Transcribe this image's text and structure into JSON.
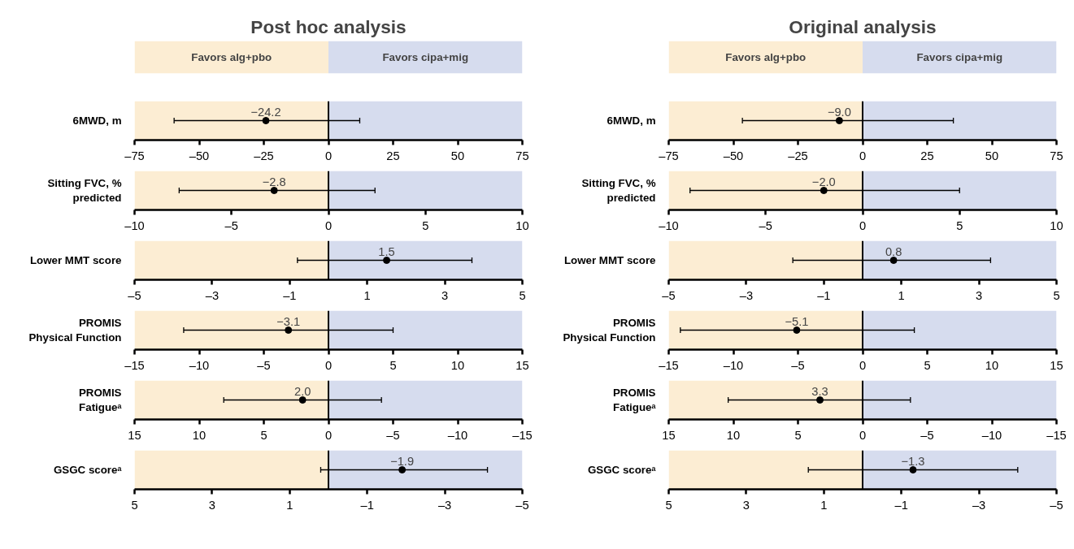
{
  "chart_data": [
    {
      "type": "scatter",
      "orientation": "horizontal",
      "title": "Post hoc analysis",
      "annotations": [
        "Favors alg+pbo",
        "Favors cipa+mig"
      ],
      "categories": [
        "6MWD, m"
      ],
      "values": [
        -24.2
      ],
      "errors": [
        [
          -59.7,
          12.1
        ]
      ],
      "value_labels": [
        "−24.2"
      ],
      "marker": "circle",
      "xlim": [
        -75,
        75
      ],
      "xticks": [
        {
          "value": -75,
          "label": "–75"
        },
        {
          "value": -50,
          "label": "–50"
        },
        {
          "value": -25,
          "label": "–25"
        },
        0,
        25,
        50,
        75
      ],
      "ref_lines": [
        {
          "axis": "x",
          "value": 0
        }
      ],
      "bands": [
        {
          "axis": "x",
          "from": -75,
          "to": 0,
          "color": "#fcedd3"
        },
        {
          "axis": "x",
          "from": 0,
          "to": 75,
          "color": "#d6dcee"
        }
      ]
    },
    {
      "type": "scatter",
      "orientation": "horizontal",
      "categories": [
        "Sitting FVC, %\npredicted"
      ],
      "values": [
        -2.8
      ],
      "errors": [
        [
          -7.7,
          2.4
        ]
      ],
      "value_labels": [
        "−2.8"
      ],
      "marker": "circle",
      "xlim": [
        -10,
        10
      ],
      "xticks": [
        {
          "value": -10,
          "label": "–10"
        },
        {
          "value": -5,
          "label": "–5"
        },
        0,
        5,
        10
      ],
      "ref_lines": [
        {
          "axis": "x",
          "value": 0
        }
      ],
      "bands": [
        {
          "axis": "x",
          "from": -10,
          "to": 0,
          "color": "#fcedd3"
        },
        {
          "axis": "x",
          "from": 0,
          "to": 10,
          "color": "#d6dcee"
        }
      ]
    },
    {
      "type": "scatter",
      "orientation": "horizontal",
      "categories": [
        "Lower MMT score"
      ],
      "values": [
        1.5
      ],
      "errors": [
        [
          -0.8,
          3.7
        ]
      ],
      "value_labels": [
        "1.5"
      ],
      "marker": "circle",
      "xlim": [
        -5,
        5
      ],
      "xticks": [
        {
          "value": -5,
          "label": "–5"
        },
        {
          "value": -3,
          "label": "–3"
        },
        {
          "value": -1,
          "label": "–1"
        },
        1,
        3,
        5
      ],
      "ref_lines": [
        {
          "axis": "x",
          "value": 0
        }
      ],
      "bands": [
        {
          "axis": "x",
          "from": -5,
          "to": 0,
          "color": "#fcedd3"
        },
        {
          "axis": "x",
          "from": 0,
          "to": 5,
          "color": "#d6dcee"
        }
      ]
    },
    {
      "type": "scatter",
      "orientation": "horizontal",
      "categories": [
        "PROMIS\nPhysical Function"
      ],
      "values": [
        -3.1
      ],
      "errors": [
        [
          -11.2,
          5.0
        ]
      ],
      "value_labels": [
        "−3.1"
      ],
      "marker": "circle",
      "xlim": [
        -15,
        15
      ],
      "xticks": [
        {
          "value": -15,
          "label": "–15"
        },
        {
          "value": -10,
          "label": "–10"
        },
        {
          "value": -5,
          "label": "–5"
        },
        0,
        5,
        10,
        15
      ],
      "ref_lines": [
        {
          "axis": "x",
          "value": 0
        }
      ],
      "bands": [
        {
          "axis": "x",
          "from": -15,
          "to": 0,
          "color": "#fcedd3"
        },
        {
          "axis": "x",
          "from": 0,
          "to": 15,
          "color": "#d6dcee"
        }
      ]
    },
    {
      "type": "scatter",
      "orientation": "horizontal",
      "categories": [
        "PROMIS\nFatigueᵃ"
      ],
      "values": [
        2.0
      ],
      "errors": [
        [
          -4.1,
          8.1
        ]
      ],
      "value_labels": [
        "2.0"
      ],
      "marker": "circle",
      "xlim": [
        15,
        -15
      ],
      "xticks": [
        15,
        10,
        5,
        0,
        {
          "value": -5,
          "label": "–5"
        },
        {
          "value": -10,
          "label": "–10"
        },
        {
          "value": -15,
          "label": "–15"
        }
      ],
      "ref_lines": [
        {
          "axis": "x",
          "value": 0
        }
      ],
      "bands": [
        {
          "axis": "x",
          "from": 15,
          "to": 0,
          "color": "#fcedd3"
        },
        {
          "axis": "x",
          "from": 0,
          "to": -15,
          "color": "#d6dcee"
        }
      ]
    },
    {
      "type": "scatter",
      "orientation": "horizontal",
      "categories": [
        "GSGC scoreᵃ"
      ],
      "values": [
        -1.9
      ],
      "errors": [
        [
          -4.1,
          0.2
        ]
      ],
      "value_labels": [
        "−1.9"
      ],
      "marker": "circle",
      "xlim": [
        5,
        -5
      ],
      "xticks": [
        5,
        3,
        1,
        {
          "value": -1,
          "label": "–1"
        },
        {
          "value": -3,
          "label": "–3"
        },
        {
          "value": -5,
          "label": "–5"
        }
      ],
      "ref_lines": [
        {
          "axis": "x",
          "value": 0
        }
      ],
      "bands": [
        {
          "axis": "x",
          "from": 5,
          "to": 0,
          "color": "#fcedd3"
        },
        {
          "axis": "x",
          "from": 0,
          "to": -5,
          "color": "#d6dcee"
        }
      ]
    },
    {
      "type": "scatter",
      "orientation": "horizontal",
      "title": "Original analysis",
      "annotations": [
        "Favors alg+pbo",
        "Favors cipa+mig"
      ],
      "categories": [
        "6MWD, m"
      ],
      "values": [
        -9.0
      ],
      "errors": [
        [
          -46.5,
          35.1
        ]
      ],
      "value_labels": [
        "−9.0"
      ],
      "marker": "circle",
      "xlim": [
        -75,
        75
      ],
      "xticks": [
        {
          "value": -75,
          "label": "–75"
        },
        {
          "value": -50,
          "label": "–50"
        },
        {
          "value": -25,
          "label": "–25"
        },
        0,
        25,
        50,
        75
      ],
      "ref_lines": [
        {
          "axis": "x",
          "value": 0
        }
      ],
      "bands": [
        {
          "axis": "x",
          "from": -75,
          "to": 0,
          "color": "#fcedd3"
        },
        {
          "axis": "x",
          "from": 0,
          "to": 75,
          "color": "#d6dcee"
        }
      ]
    },
    {
      "type": "scatter",
      "orientation": "horizontal",
      "categories": [
        "Sitting FVC, %\npredicted"
      ],
      "values": [
        -2.0
      ],
      "errors": [
        [
          -8.9,
          5.0
        ]
      ],
      "value_labels": [
        "−2.0"
      ],
      "marker": "circle",
      "xlim": [
        -10,
        10
      ],
      "xticks": [
        {
          "value": -10,
          "label": "–10"
        },
        {
          "value": -5,
          "label": "–5"
        },
        0,
        5,
        10
      ],
      "ref_lines": [
        {
          "axis": "x",
          "value": 0
        }
      ],
      "bands": [
        {
          "axis": "x",
          "from": -10,
          "to": 0,
          "color": "#fcedd3"
        },
        {
          "axis": "x",
          "from": 0,
          "to": 10,
          "color": "#d6dcee"
        }
      ]
    },
    {
      "type": "scatter",
      "orientation": "horizontal",
      "categories": [
        "Lower MMT score"
      ],
      "values": [
        0.8
      ],
      "errors": [
        [
          -1.8,
          3.3
        ]
      ],
      "value_labels": [
        "0.8"
      ],
      "marker": "circle",
      "xlim": [
        -5,
        5
      ],
      "xticks": [
        {
          "value": -5,
          "label": "–5"
        },
        {
          "value": -3,
          "label": "–3"
        },
        {
          "value": -1,
          "label": "–1"
        },
        1,
        3,
        5
      ],
      "ref_lines": [
        {
          "axis": "x",
          "value": 0
        }
      ],
      "bands": [
        {
          "axis": "x",
          "from": -5,
          "to": 0,
          "color": "#fcedd3"
        },
        {
          "axis": "x",
          "from": 0,
          "to": 5,
          "color": "#d6dcee"
        }
      ]
    },
    {
      "type": "scatter",
      "orientation": "horizontal",
      "categories": [
        "PROMIS\nPhysical Function"
      ],
      "values": [
        -5.1
      ],
      "errors": [
        [
          -14.1,
          4.0
        ]
      ],
      "value_labels": [
        "−5.1"
      ],
      "marker": "circle",
      "xlim": [
        -15,
        15
      ],
      "xticks": [
        {
          "value": -15,
          "label": "–15"
        },
        {
          "value": -10,
          "label": "–10"
        },
        {
          "value": -5,
          "label": "–5"
        },
        0,
        5,
        10,
        15
      ],
      "ref_lines": [
        {
          "axis": "x",
          "value": 0
        }
      ],
      "bands": [
        {
          "axis": "x",
          "from": -15,
          "to": 0,
          "color": "#fcedd3"
        },
        {
          "axis": "x",
          "from": 0,
          "to": 15,
          "color": "#d6dcee"
        }
      ]
    },
    {
      "type": "scatter",
      "orientation": "horizontal",
      "categories": [
        "PROMIS\nFatigueᵃ"
      ],
      "values": [
        3.3
      ],
      "errors": [
        [
          -3.7,
          10.4
        ]
      ],
      "value_labels": [
        "3.3"
      ],
      "marker": "circle",
      "xlim": [
        15,
        -15
      ],
      "xticks": [
        15,
        10,
        5,
        0,
        {
          "value": -5,
          "label": "–5"
        },
        {
          "value": -10,
          "label": "–10"
        },
        {
          "value": -15,
          "label": "–15"
        }
      ],
      "ref_lines": [
        {
          "axis": "x",
          "value": 0
        }
      ],
      "bands": [
        {
          "axis": "x",
          "from": 15,
          "to": 0,
          "color": "#fcedd3"
        },
        {
          "axis": "x",
          "from": 0,
          "to": -15,
          "color": "#d6dcee"
        }
      ]
    },
    {
      "type": "scatter",
      "orientation": "horizontal",
      "categories": [
        "GSGC scoreᵃ"
      ],
      "values": [
        -1.3
      ],
      "errors": [
        [
          -4.0,
          1.4
        ]
      ],
      "value_labels": [
        "−1.3"
      ],
      "marker": "circle",
      "xlim": [
        5,
        -5
      ],
      "xticks": [
        5,
        3,
        1,
        {
          "value": -1,
          "label": "–1"
        },
        {
          "value": -3,
          "label": "–3"
        },
        {
          "value": -5,
          "label": "–5"
        }
      ],
      "ref_lines": [
        {
          "axis": "x",
          "value": 0
        }
      ],
      "bands": [
        {
          "axis": "x",
          "from": 5,
          "to": 0,
          "color": "#fcedd3"
        },
        {
          "axis": "x",
          "from": 0,
          "to": -5,
          "color": "#d6dcee"
        }
      ]
    }
  ]
}
